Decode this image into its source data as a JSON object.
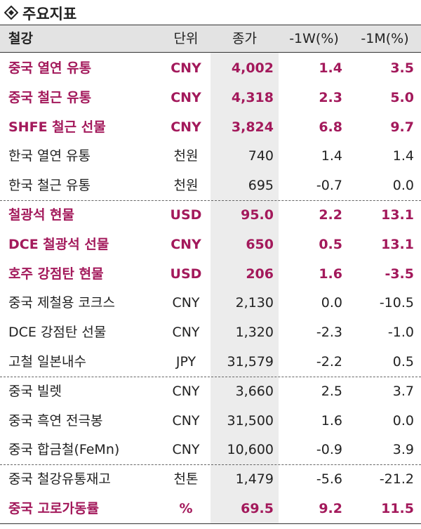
{
  "title": "주요지표",
  "table": {
    "header": [
      "철강",
      "단위",
      "종가",
      "-1W(%)",
      "-1M(%)"
    ],
    "groups": [
      [
        {
          "cells": [
            "중국 열연 유통",
            "CNY",
            "4,002",
            "1.4",
            "3.5"
          ],
          "highlight": true
        },
        {
          "cells": [
            "중국 철근 유통",
            "CNY",
            "4,318",
            "2.3",
            "5.0"
          ],
          "highlight": true
        },
        {
          "cells": [
            "SHFE 철근 선물",
            "CNY",
            "3,824",
            "6.8",
            "9.7"
          ],
          "highlight": true
        },
        {
          "cells": [
            "한국 열연 유통",
            "천원",
            "740",
            "1.4",
            "1.4"
          ],
          "highlight": false
        },
        {
          "cells": [
            "한국 철근 유통",
            "천원",
            "695",
            "-0.7",
            "0.0"
          ],
          "highlight": false
        }
      ],
      [
        {
          "cells": [
            "철광석 현물",
            "USD",
            "95.0",
            "2.2",
            "13.1"
          ],
          "highlight": true
        },
        {
          "cells": [
            "DCE 철광석 선물",
            "CNY",
            "650",
            "0.5",
            "13.1"
          ],
          "highlight": true
        },
        {
          "cells": [
            "호주 강점탄 현물",
            "USD",
            "206",
            "1.6",
            "-3.5"
          ],
          "highlight": true
        },
        {
          "cells": [
            "중국 제철용 코크스",
            "CNY",
            "2,130",
            "0.0",
            "-10.5"
          ],
          "highlight": false
        },
        {
          "cells": [
            "DCE 강점탄 선물",
            "CNY",
            "1,320",
            "-2.3",
            "-1.0"
          ],
          "highlight": false
        },
        {
          "cells": [
            "고철 일본내수",
            "JPY",
            "31,579",
            "-2.2",
            "0.5"
          ],
          "highlight": false
        }
      ],
      [
        {
          "cells": [
            "중국 빌렛",
            "CNY",
            "3,660",
            "2.5",
            "3.7"
          ],
          "highlight": false
        },
        {
          "cells": [
            "중국 흑연 전극봉",
            "CNY",
            "31,500",
            "1.6",
            "0.0"
          ],
          "highlight": false
        },
        {
          "cells": [
            "중국 합금철(FeMn)",
            "CNY",
            "10,600",
            "-0.9",
            "3.9"
          ],
          "highlight": false
        }
      ],
      [
        {
          "cells": [
            "중국 철강유통재고",
            "천톤",
            "1,479",
            "-5.6",
            "-21.2"
          ],
          "highlight": false
        },
        {
          "cells": [
            "중국 고로가동률",
            "%",
            "69.5",
            "9.2",
            "11.5"
          ],
          "highlight": true
        }
      ]
    ]
  }
}
